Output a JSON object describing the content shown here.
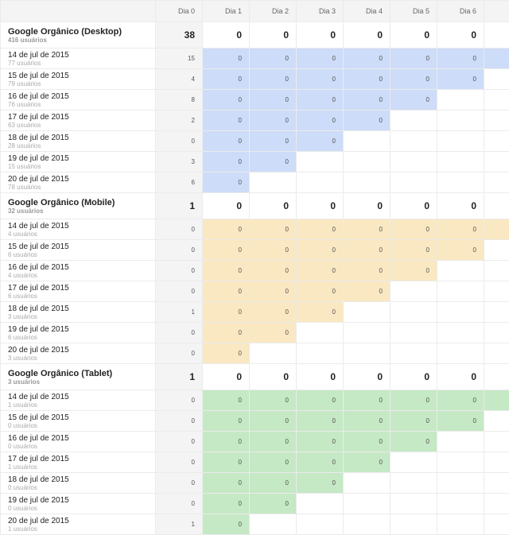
{
  "headers": [
    "",
    "Dia 0",
    "Dia 1",
    "Dia 2",
    "Dia 3",
    "Dia 4",
    "Dia 5",
    "Dia 6",
    ""
  ],
  "groups": [
    {
      "title": "Google Orgânico (Desktop)",
      "users": "416 usuários",
      "color": "#cddcf8",
      "day0": "38",
      "days": [
        "0",
        "0",
        "0",
        "0",
        "0",
        "0"
      ],
      "rows": [
        {
          "date": "14 de jul de 2015",
          "users": "77 usuários",
          "day0": "15"
        },
        {
          "date": "15 de jul de 2015",
          "users": "79 usuários",
          "day0": "4"
        },
        {
          "date": "16 de jul de 2015",
          "users": "76 usuários",
          "day0": "8"
        },
        {
          "date": "17 de jul de 2015",
          "users": "63 usuários",
          "day0": "2"
        },
        {
          "date": "18 de jul de 2015",
          "users": "28 usuários",
          "day0": "0"
        },
        {
          "date": "19 de jul de 2015",
          "users": "15 usuários",
          "day0": "3"
        },
        {
          "date": "20 de jul de 2015",
          "users": "78 usuários",
          "day0": "6"
        }
      ]
    },
    {
      "title": "Google Orgânico (Mobile)",
      "users": "32 usuários",
      "color": "#f9e8c2",
      "day0": "1",
      "days": [
        "0",
        "0",
        "0",
        "0",
        "0",
        "0"
      ],
      "rows": [
        {
          "date": "14 de jul de 2015",
          "users": "4 usuários",
          "day0": "0"
        },
        {
          "date": "15 de jul de 2015",
          "users": "6 usuários",
          "day0": "0"
        },
        {
          "date": "16 de jul de 2015",
          "users": "4 usuários",
          "day0": "0"
        },
        {
          "date": "17 de jul de 2015",
          "users": "6 usuários",
          "day0": "0"
        },
        {
          "date": "18 de jul de 2015",
          "users": "3 usuários",
          "day0": "1"
        },
        {
          "date": "19 de jul de 2015",
          "users": "6 usuários",
          "day0": "0"
        },
        {
          "date": "20 de jul de 2015",
          "users": "3 usuários",
          "day0": "0"
        }
      ]
    },
    {
      "title": "Google Orgânico (Tablet)",
      "users": "3 usuários",
      "color": "#c5e8c5",
      "day0": "1",
      "days": [
        "0",
        "0",
        "0",
        "0",
        "0",
        "0"
      ],
      "rows": [
        {
          "date": "14 de jul de 2015",
          "users": "1 usuários",
          "day0": "0"
        },
        {
          "date": "15 de jul de 2015",
          "users": "0 usuários",
          "day0": "0"
        },
        {
          "date": "16 de jul de 2015",
          "users": "0 usuários",
          "day0": "0"
        },
        {
          "date": "17 de jul de 2015",
          "users": "1 usuários",
          "day0": "0"
        },
        {
          "date": "18 de jul de 2015",
          "users": "0 usuários",
          "day0": "0"
        },
        {
          "date": "19 de jul de 2015",
          "users": "0 usuários",
          "day0": "0"
        },
        {
          "date": "20 de jul de 2015",
          "users": "1 usuários",
          "day0": "1"
        }
      ]
    }
  ],
  "cell_value": "0"
}
